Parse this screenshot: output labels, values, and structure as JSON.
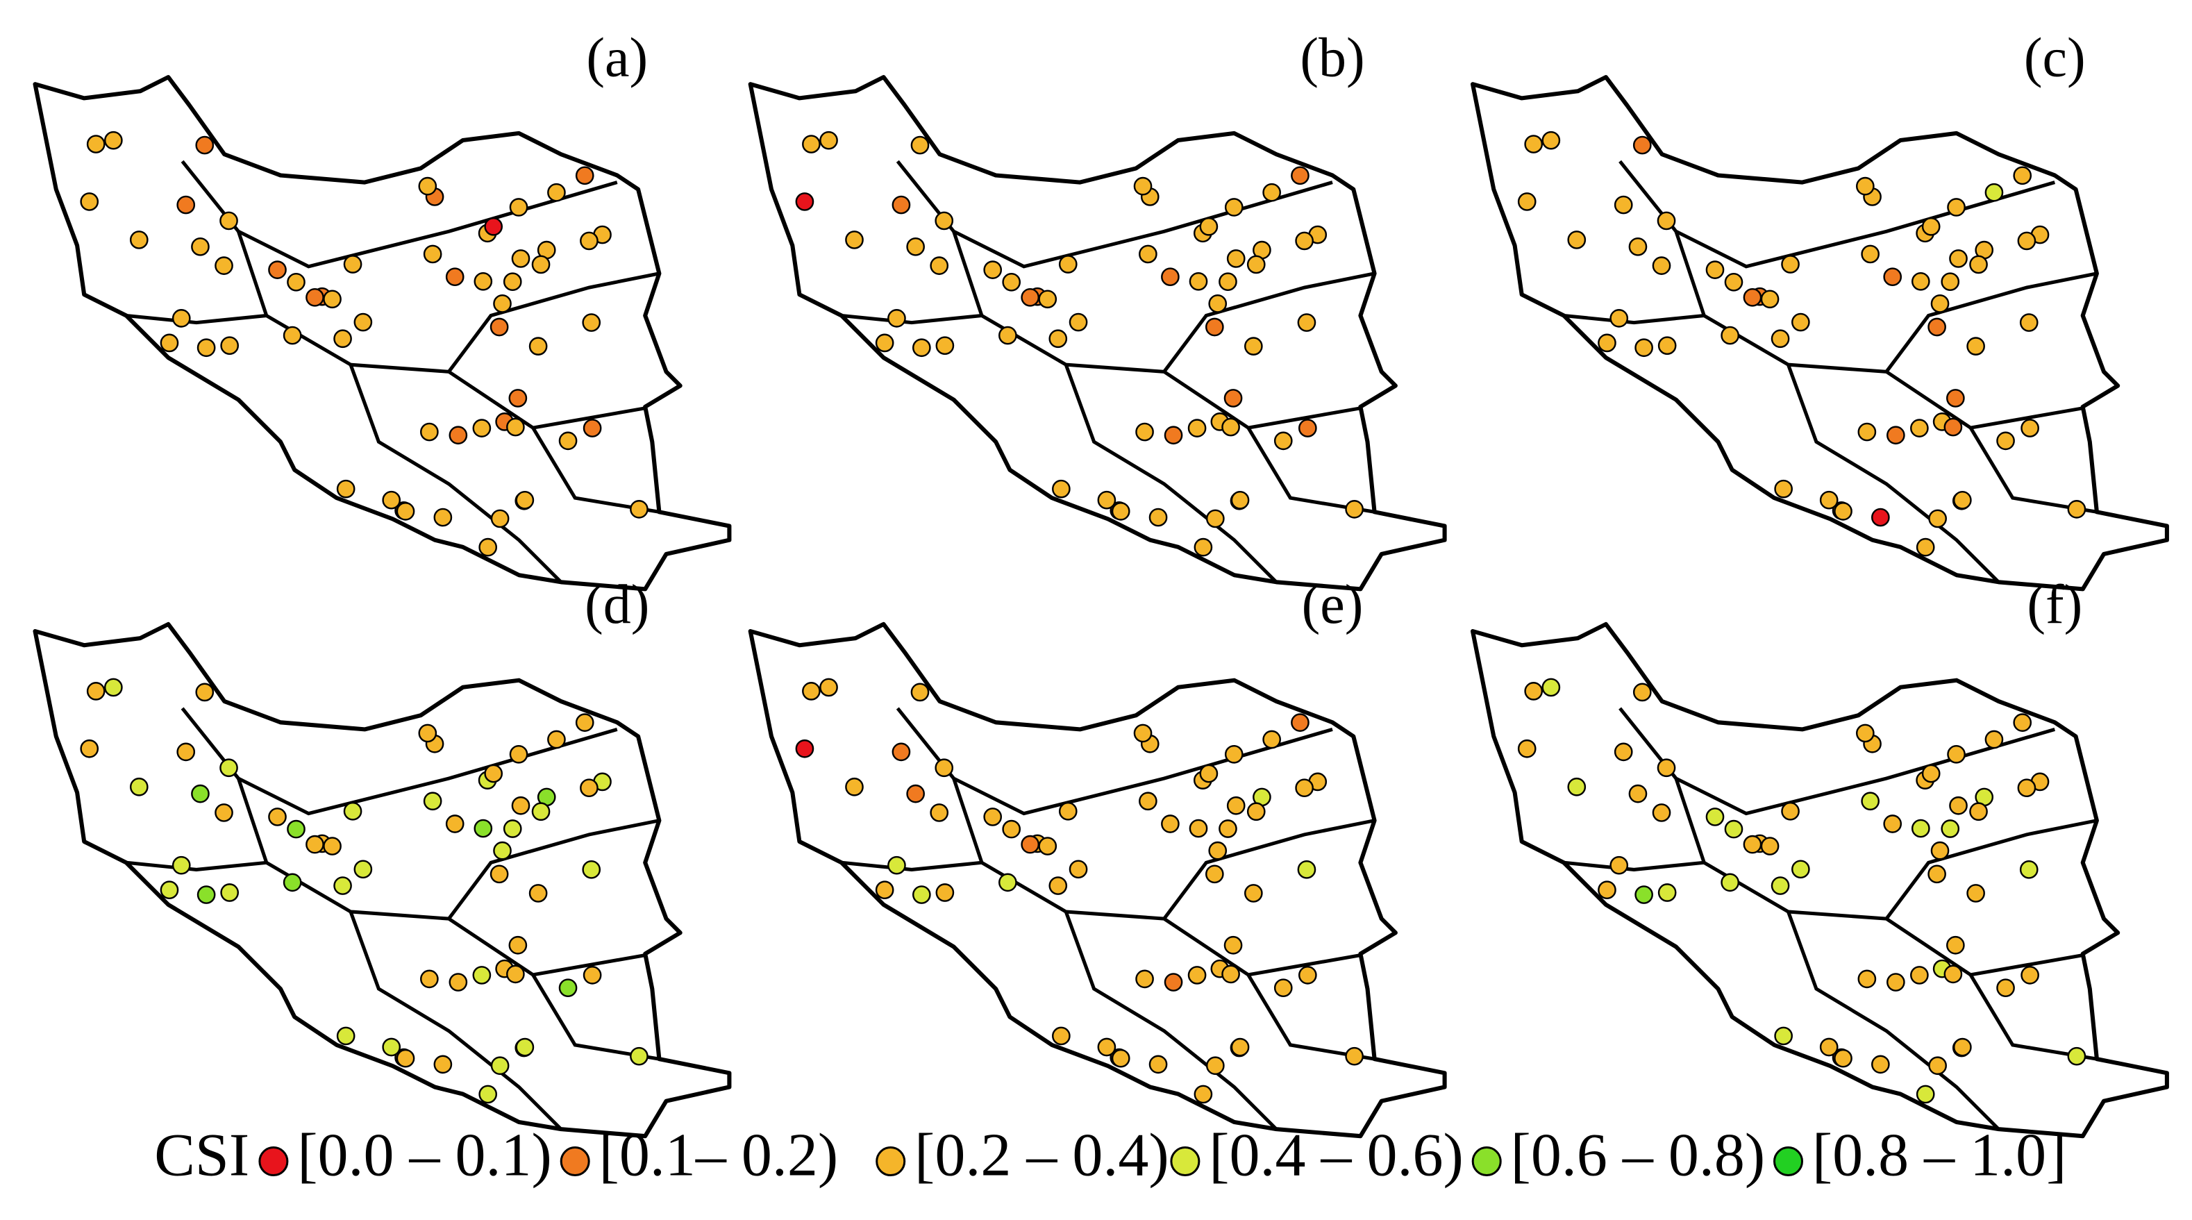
{
  "panels": [
    {
      "label": "(a)",
      "classes": [
        2,
        1,
        2,
        2,
        1,
        1,
        2,
        2,
        2,
        1,
        2,
        2,
        2,
        2,
        1,
        2,
        2,
        2,
        1,
        2,
        2,
        2,
        1,
        2,
        0,
        2,
        2,
        1,
        2,
        2,
        2,
        2,
        1,
        2,
        2,
        2,
        2,
        1,
        2,
        2,
        2,
        1,
        2,
        2,
        2,
        2,
        1,
        2,
        2,
        2,
        2,
        2,
        1,
        2,
        2,
        2,
        2,
        1,
        2,
        2
      ]
    },
    {
      "label": "(b)",
      "classes": [
        2,
        2,
        2,
        2,
        1,
        2,
        2,
        2,
        2,
        1,
        2,
        2,
        2,
        2,
        1,
        2,
        2,
        2,
        2,
        2,
        2,
        2,
        1,
        2,
        2,
        2,
        2,
        1,
        2,
        2,
        0,
        2,
        1,
        2,
        2,
        2,
        2,
        1,
        2,
        2,
        2,
        2,
        2,
        2,
        2,
        2,
        1,
        2,
        2,
        2,
        2,
        2,
        1,
        2,
        2,
        2,
        2,
        1,
        2,
        2
      ]
    },
    {
      "label": "(c)",
      "classes": [
        2,
        2,
        2,
        2,
        2,
        2,
        2,
        2,
        2,
        1,
        2,
        2,
        3,
        2,
        2,
        2,
        2,
        2,
        1,
        2,
        2,
        2,
        1,
        2,
        2,
        2,
        2,
        2,
        2,
        2,
        2,
        2,
        1,
        2,
        0,
        2,
        2,
        1,
        2,
        2,
        2,
        2,
        2,
        2,
        2,
        2,
        1,
        2,
        2,
        2,
        2,
        2,
        2,
        2,
        2,
        1,
        2,
        1,
        2,
        2
      ]
    },
    {
      "label": "(d)",
      "classes": [
        3,
        2,
        3,
        4,
        2,
        2,
        3,
        3,
        2,
        2,
        3,
        4,
        2,
        3,
        2,
        3,
        2,
        4,
        2,
        3,
        3,
        2,
        2,
        3,
        2,
        3,
        4,
        2,
        3,
        2,
        2,
        3,
        2,
        3,
        2,
        4,
        3,
        2,
        3,
        2,
        3,
        2,
        4,
        3,
        2,
        3,
        2,
        2,
        3,
        4,
        2,
        3,
        2,
        3,
        2,
        2,
        3,
        2,
        3,
        2
      ]
    },
    {
      "label": "(e)",
      "classes": [
        2,
        2,
        2,
        3,
        1,
        2,
        2,
        2,
        2,
        2,
        2,
        3,
        2,
        2,
        1,
        2,
        2,
        2,
        2,
        2,
        3,
        2,
        1,
        2,
        2,
        2,
        2,
        2,
        2,
        2,
        0,
        2,
        1,
        2,
        2,
        3,
        2,
        2,
        2,
        2,
        2,
        2,
        1,
        2,
        2,
        2,
        2,
        2,
        2,
        2,
        2,
        3,
        1,
        2,
        2,
        2,
        2,
        2,
        2,
        2
      ]
    },
    {
      "label": "(f)",
      "classes": [
        2,
        3,
        2,
        3,
        2,
        2,
        3,
        2,
        2,
        2,
        3,
        3,
        2,
        2,
        1,
        3,
        2,
        3,
        2,
        2,
        3,
        2,
        2,
        3,
        2,
        2,
        3,
        2,
        2,
        2,
        2,
        3,
        2,
        2,
        2,
        4,
        2,
        2,
        3,
        2,
        2,
        3,
        2,
        2,
        2,
        3,
        2,
        2,
        3,
        2,
        2,
        2,
        2,
        3,
        2,
        2,
        2,
        2,
        3,
        2
      ]
    }
  ],
  "legend": {
    "title": "CSI",
    "items": [
      {
        "label": "[0.0 – 0.1)",
        "color": "#e8141c"
      },
      {
        "label": "[0.1– 0.2)",
        "color": "#f07a20"
      },
      {
        "label": "[0.2 – 0.4)",
        "color": "#f5b52a"
      },
      {
        "label": "[0.4 – 0.6)",
        "color": "#d8e83a"
      },
      {
        "label": "[0.6 – 0.8)",
        "color": "#8ae02a"
      },
      {
        "label": "[0.8 – 1.0]",
        "color": "#22d022"
      }
    ]
  }
}
